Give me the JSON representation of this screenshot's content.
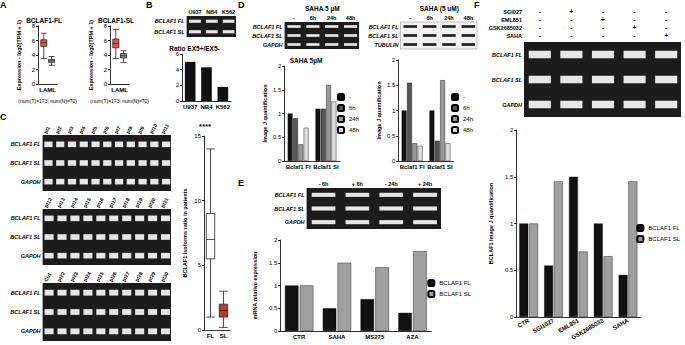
{
  "panels": [
    "A",
    "B",
    "C",
    "D",
    "E",
    "F"
  ],
  "chart_data": [
    {
      "type": "boxplot",
      "title": "BCLAF1-FL",
      "categories": [
        "LAML"
      ],
      "x_label": "(num(T)=173; num(N)=70)",
      "y_label": "Expression - log2(TPM + 1)",
      "ylim": [
        0,
        8
      ],
      "yticks": [
        0,
        2,
        4,
        6,
        8
      ],
      "grid": false,
      "series": [
        {
          "color": "#e8534f",
          "boxes": [
            [
              3.5,
              5.2,
              5.7,
              6.1,
              7
            ]
          ]
        },
        {
          "color": "#9a9a9a",
          "boxes": [
            [
              2.6,
              3.0,
              3.2,
              3.4,
              3.8
            ]
          ]
        }
      ]
    },
    {
      "type": "boxplot",
      "title": "BCLAF1-SL",
      "categories": [
        "LAML"
      ],
      "x_label": "(num(T)=173; num(N)=70)",
      "y_label": "Expression - log2(TPM + 1)",
      "ylim": [
        0,
        8
      ],
      "yticks": [
        0,
        2,
        4,
        6,
        8
      ],
      "grid": false,
      "series": [
        {
          "color": "#e8534f",
          "boxes": [
            [
              3.5,
              5.0,
              5.6,
              6.2,
              7.5
            ]
          ]
        },
        {
          "color": "#9a9a9a",
          "boxes": [
            [
              3.0,
              3.6,
              3.9,
              4.2,
              4.6
            ]
          ]
        }
      ]
    },
    {
      "type": "bar",
      "title": "Ratio EX5+/EX5-",
      "categories": [
        "U937",
        "NB4",
        "K562"
      ],
      "values": [
        5,
        4.3,
        1.8
      ],
      "color": "#111111",
      "ylim": [
        0,
        6
      ],
      "yticks": [
        0,
        2,
        4,
        6
      ],
      "grid": false
    },
    {
      "type": "boxplot",
      "categories": [
        "FL",
        "SL"
      ],
      "y_label": "BCLAF1 isoforms ratio in patients",
      "annotations": [
        "****"
      ],
      "ylim": [
        0,
        15
      ],
      "yticks": [
        0,
        5,
        10,
        15
      ],
      "grid": false,
      "series": [
        {
          "colors": [
            "#ffffff",
            "#c0392b"
          ],
          "boxes": [
            [
              1,
              5.5,
              7,
              9,
              14
            ],
            [
              0.2,
              1,
              1.5,
              2,
              3
            ]
          ]
        }
      ]
    },
    {
      "type": "bar",
      "title": "SAHA 5µM",
      "categories": [
        "Bclaf1 Fl",
        "Bclaf1 Sl"
      ],
      "y_label": "Image J quantification",
      "ylim": [
        0,
        2
      ],
      "yticks": [
        0,
        0.5,
        1,
        1.5,
        2
      ],
      "grid": false,
      "legend": "right",
      "series": [
        {
          "name": "-",
          "color": "#111111",
          "values": [
            1,
            1.1
          ]
        },
        {
          "name": "6h",
          "color": "#555555",
          "values": [
            0.9,
            1.1
          ]
        },
        {
          "name": "24h",
          "color": "#999999",
          "values": [
            0.35,
            1.6
          ]
        },
        {
          "name": "48h",
          "color": "#dddddd",
          "values": [
            0.7,
            1.25
          ]
        }
      ]
    },
    {
      "type": "bar",
      "categories": [
        "Bclaf1 Fl",
        "Bclaf1 Sl"
      ],
      "y_label": "Image J quantification",
      "ylim": [
        0,
        2
      ],
      "yticks": [
        0,
        0.5,
        1,
        1.5,
        2
      ],
      "grid": false,
      "legend": "right",
      "series": [
        {
          "name": "-",
          "color": "#111111",
          "values": [
            1,
            1
          ]
        },
        {
          "name": "6h",
          "color": "#555555",
          "values": [
            1.55,
            0.4
          ]
        },
        {
          "name": "24h",
          "color": "#999999",
          "values": [
            0.35,
            1.6
          ]
        },
        {
          "name": "48h",
          "color": "#dddddd",
          "values": [
            0.3,
            0.35
          ]
        }
      ]
    },
    {
      "type": "bar",
      "categories": [
        "CTR",
        "SAHA",
        "MS275",
        "AZA"
      ],
      "y_label": "mRNA relative expression",
      "ylim": [
        0,
        2
      ],
      "yticks": [
        0,
        0.5,
        1,
        1.5,
        2
      ],
      "grid": false,
      "legend": "right",
      "series": [
        {
          "name": "BCLAF1 FL",
          "color": "#111111",
          "values": [
            1,
            0.5,
            0.7,
            0.4
          ]
        },
        {
          "name": "BCLAF1 SL",
          "color": "#a0a0a0",
          "values": [
            1,
            1.5,
            1.4,
            1.75
          ]
        }
      ]
    },
    {
      "type": "bar",
      "categories": [
        "CTR",
        "SGI1027",
        "EML851",
        "GSK2685032",
        "SAHA"
      ],
      "y_label": "BCLAF1 Image J quantification",
      "ylim": [
        0,
        2
      ],
      "yticks": [
        0,
        0.5,
        1,
        1.5,
        2
      ],
      "grid": false,
      "legend": "right",
      "series": [
        {
          "name": "BCLAF1 FL",
          "color": "#111111",
          "values": [
            1,
            0.55,
            1.5,
            1.0,
            0.45
          ]
        },
        {
          "name": "BCLAF1 SL",
          "color": "#a0a0a0",
          "values": [
            1,
            1.45,
            0.7,
            0.65,
            1.45
          ]
        }
      ]
    }
  ],
  "gels": [
    {
      "type": "gel",
      "lanes": [
        "U937",
        "NB4",
        "K562"
      ],
      "rows": [
        "BCLAF1 FL",
        "BCLAF1 SL"
      ]
    },
    {
      "type": "gel",
      "lanes": [
        "pt1",
        "pt2",
        "pt3",
        "pt4",
        "pt5",
        "pt6",
        "pt7",
        "pt8",
        "pt9",
        "pt10",
        "pt11"
      ],
      "rows": [
        "BCLAF1 FL",
        "BCLAF1 SL",
        "GAPDH"
      ]
    },
    {
      "type": "gel",
      "lanes": [
        "pt12",
        "pt13",
        "pt14",
        "pt15",
        "pt16",
        "pt17",
        "pt18",
        "pt19",
        "pt20",
        "pt21"
      ],
      "rows": [
        "BCLAF1 FL",
        "BCLAF1 SL",
        "GAPDH"
      ]
    },
    {
      "type": "gel",
      "lanes": [
        "Ctrl",
        "pt22",
        "pt23",
        "pt24",
        "pt25",
        "pt26",
        "pt27",
        "pt28",
        "pt29",
        "pt30"
      ],
      "rows": [
        "BCLAF1 FL",
        "BCLAF1 SL",
        "GAPDH"
      ]
    },
    {
      "type": "gel",
      "header": "SAHA 5 µM",
      "lanes": [
        "-",
        "6h",
        "24h",
        "48h"
      ],
      "rows": [
        "BCLAF1 FL",
        "BCLAF1 SL",
        "GAPDH"
      ]
    },
    {
      "type": "western",
      "header": "SAHA (5 uM)",
      "lanes": [
        "-",
        "6h",
        "24h",
        "48h"
      ],
      "rows": [
        "BCLAF1 FL",
        "BCLAF1 SL",
        "TUBULIN"
      ]
    },
    {
      "type": "gel",
      "lanes": [
        "- 6h",
        "+ 6h",
        "- 24h",
        "+ 24h"
      ],
      "rows": [
        "BCLAF1 FL",
        "BCLAF1 SL",
        "GAPDH"
      ]
    },
    {
      "type": "gel",
      "treatments": {
        "rows": [
          "SGI027",
          "EML851",
          "GSK2685032",
          "SAHA"
        ],
        "cells": [
          [
            "-",
            "+",
            "-",
            "-",
            "-"
          ],
          [
            "-",
            "-",
            "+",
            "-",
            "-"
          ],
          [
            "-",
            "-",
            "-",
            "+",
            "-"
          ],
          [
            "-",
            "-",
            "-",
            "-",
            "+"
          ]
        ]
      },
      "rows": [
        "BCLAF1 FL",
        "BCLAF1 SL",
        "GAPDH"
      ]
    }
  ]
}
